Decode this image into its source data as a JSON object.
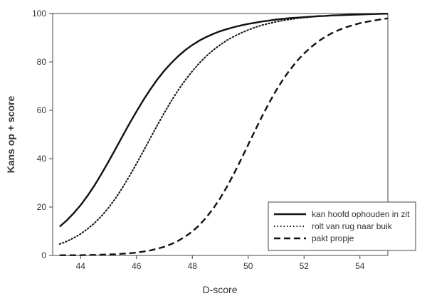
{
  "chart_data": {
    "type": "line",
    "xlabel": "D-score",
    "ylabel": "Kans op + score",
    "xlim": [
      43.0,
      55.0
    ],
    "ylim": [
      0,
      100
    ],
    "x_ticks": [
      44,
      46,
      48,
      50,
      52,
      54
    ],
    "y_ticks": [
      0,
      20,
      40,
      60,
      80,
      100
    ],
    "grid": false,
    "legend_position": "bottom-right",
    "x": [
      43.25,
      43.5,
      43.75,
      44.0,
      44.25,
      44.5,
      44.75,
      45.0,
      45.25,
      45.5,
      45.75,
      46.0,
      46.25,
      46.5,
      46.75,
      47.0,
      47.25,
      47.5,
      47.75,
      48.0,
      48.25,
      48.5,
      48.75,
      49.0,
      49.25,
      49.5,
      49.75,
      50.0,
      50.25,
      50.5,
      50.75,
      51.0,
      51.25,
      51.5,
      51.75,
      52.0,
      52.25,
      52.5,
      52.75,
      53.0,
      53.25,
      53.5,
      53.75,
      54.0,
      54.25,
      54.5,
      54.75,
      55.0
    ],
    "series": [
      {
        "name": "kan hoofd ophouden in zit",
        "style": "solid",
        "values": [
          11.9,
          14.4,
          17.4,
          20.8,
          24.7,
          29.0,
          33.8,
          38.8,
          44.0,
          49.3,
          54.5,
          59.5,
          64.3,
          68.7,
          72.8,
          76.4,
          79.6,
          82.4,
          84.9,
          87.0,
          88.8,
          90.3,
          91.6,
          92.7,
          93.6,
          94.4,
          95.1,
          95.7,
          96.2,
          96.7,
          97.1,
          97.5,
          97.8,
          98.1,
          98.3,
          98.5,
          98.7,
          98.9,
          99.0,
          99.2,
          99.3,
          99.4,
          99.5,
          99.6,
          99.7,
          99.8,
          99.9,
          99.9
        ]
      },
      {
        "name": "rolt van rug naar buik",
        "style": "dotted",
        "values": [
          4.7,
          5.8,
          7.2,
          8.9,
          11.0,
          13.4,
          16.3,
          19.7,
          23.6,
          28.0,
          32.8,
          37.9,
          43.2,
          48.6,
          53.9,
          59.0,
          63.9,
          68.4,
          72.5,
          76.2,
          79.5,
          82.4,
          84.9,
          87.1,
          89.0,
          90.6,
          92.0,
          93.2,
          94.3,
          95.2,
          95.9,
          96.6,
          97.1,
          97.6,
          98.0,
          98.3,
          98.6,
          98.8,
          99.0,
          99.2,
          99.3,
          99.4,
          99.5,
          99.6,
          99.7,
          99.8,
          99.8,
          99.9
        ]
      },
      {
        "name": "pakt propje",
        "style": "dashed",
        "values": [
          0.1,
          0.1,
          0.1,
          0.1,
          0.2,
          0.2,
          0.3,
          0.4,
          0.5,
          0.7,
          0.9,
          1.2,
          1.6,
          2.1,
          2.8,
          3.6,
          4.7,
          6.1,
          7.8,
          9.9,
          12.5,
          15.7,
          19.4,
          23.7,
          28.6,
          34.0,
          39.8,
          45.8,
          51.8,
          57.6,
          63.1,
          68.2,
          72.8,
          76.8,
          80.4,
          83.5,
          86.1,
          88.4,
          90.3,
          91.9,
          93.2,
          94.3,
          95.2,
          96.0,
          96.6,
          97.1,
          97.6,
          98.0
        ]
      }
    ]
  }
}
